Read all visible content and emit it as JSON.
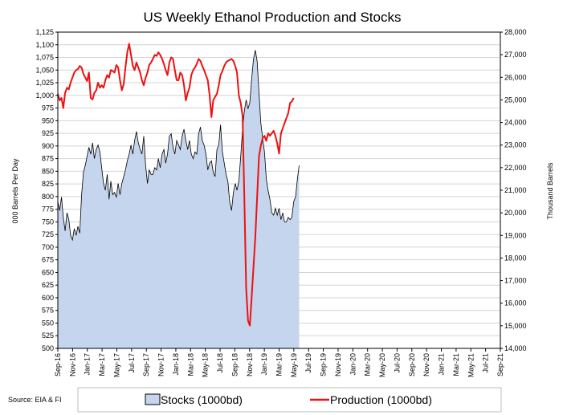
{
  "chart_data": {
    "type": "line",
    "title": "US Weekly Ethanol Production and Stocks",
    "ylabel_left": "000 Barrels Per Day",
    "ylabel_right": "Thousand Barrels",
    "source": "Source: EIA & FI",
    "ylim_left": [
      500,
      1125
    ],
    "ylim_right": [
      14000,
      28000
    ],
    "y_ticks_left": [
      500,
      525,
      550,
      575,
      600,
      625,
      650,
      675,
      700,
      725,
      750,
      775,
      800,
      825,
      850,
      875,
      900,
      925,
      950,
      975,
      1000,
      1025,
      1050,
      1075,
      1100,
      1125
    ],
    "y_ticks_right": [
      14000,
      15000,
      16000,
      17000,
      18000,
      19000,
      20000,
      21000,
      22000,
      23000,
      24000,
      25000,
      26000,
      27000,
      28000
    ],
    "x_tick_labels": [
      "Sep-16",
      "Nov-16",
      "Jan-17",
      "Mar-17",
      "May-17",
      "Jul-17",
      "Sep-17",
      "Nov-17",
      "Jan-18",
      "Mar-18",
      "May-18",
      "Jul-18",
      "Sep-18",
      "Nov-18",
      "Jan-19",
      "Mar-19",
      "May-19",
      "Jul-19",
      "Sep-19",
      "Nov-19",
      "Jan-20",
      "Mar-20",
      "May-20",
      "Jul-20",
      "Sep-20",
      "Nov-20",
      "Jan-21",
      "Mar-21",
      "May-21",
      "Jul-21",
      "Sep-21"
    ],
    "grid": true,
    "legend_position": "bottom",
    "series": [
      {
        "name": "Stocks (1000bd)",
        "type": "area",
        "axis": "right",
        "color": "#c5d5ee",
        "edge_color": "#000000",
        "points": [
          [
            0,
            20500
          ],
          [
            1,
            20100
          ],
          [
            2,
            20700
          ],
          [
            3,
            19800
          ],
          [
            4,
            19200
          ],
          [
            5,
            20000
          ],
          [
            6,
            19700
          ],
          [
            7,
            19000
          ],
          [
            8,
            18800
          ],
          [
            9,
            19300
          ],
          [
            10,
            19000
          ],
          [
            11,
            19400
          ],
          [
            12,
            19100
          ],
          [
            13,
            20800
          ],
          [
            14,
            21800
          ],
          [
            15,
            22100
          ],
          [
            16,
            22500
          ],
          [
            17,
            22900
          ],
          [
            18,
            22600
          ],
          [
            19,
            23100
          ],
          [
            20,
            22400
          ],
          [
            21,
            22800
          ],
          [
            22,
            23000
          ],
          [
            23,
            22700
          ],
          [
            24,
            22000
          ],
          [
            25,
            21300
          ],
          [
            26,
            21000
          ],
          [
            27,
            21700
          ],
          [
            28,
            20600
          ],
          [
            29,
            21400
          ],
          [
            30,
            20800
          ],
          [
            31,
            20900
          ],
          [
            32,
            20700
          ],
          [
            33,
            21300
          ],
          [
            34,
            20800
          ],
          [
            35,
            21300
          ],
          [
            36,
            21600
          ],
          [
            37,
            21900
          ],
          [
            38,
            22300
          ],
          [
            39,
            22600
          ],
          [
            40,
            23000
          ],
          [
            41,
            22600
          ],
          [
            42,
            23200
          ],
          [
            43,
            23600
          ],
          [
            44,
            23100
          ],
          [
            45,
            22800
          ],
          [
            46,
            22600
          ],
          [
            47,
            23400
          ],
          [
            48,
            22100
          ],
          [
            49,
            21300
          ],
          [
            50,
            21900
          ],
          [
            51,
            21700
          ],
          [
            52,
            21700
          ],
          [
            53,
            22000
          ],
          [
            54,
            21900
          ],
          [
            55,
            22400
          ],
          [
            56,
            22000
          ],
          [
            57,
            22600
          ],
          [
            58,
            22800
          ],
          [
            59,
            22200
          ],
          [
            60,
            22600
          ],
          [
            61,
            23400
          ],
          [
            62,
            23500
          ],
          [
            63,
            22900
          ],
          [
            64,
            22600
          ],
          [
            65,
            23200
          ],
          [
            66,
            23000
          ],
          [
            67,
            22800
          ],
          [
            68,
            23400
          ],
          [
            69,
            23700
          ],
          [
            70,
            23200
          ],
          [
            71,
            22800
          ],
          [
            72,
            23200
          ],
          [
            73,
            22600
          ],
          [
            74,
            22400
          ],
          [
            75,
            22700
          ],
          [
            76,
            22600
          ],
          [
            77,
            23500
          ],
          [
            78,
            23800
          ],
          [
            79,
            23200
          ],
          [
            80,
            23000
          ],
          [
            81,
            22600
          ],
          [
            82,
            21900
          ],
          [
            83,
            22200
          ],
          [
            84,
            22300
          ],
          [
            85,
            21800
          ],
          [
            86,
            21600
          ],
          [
            87,
            22800
          ],
          [
            88,
            23000
          ],
          [
            89,
            23900
          ],
          [
            90,
            22700
          ],
          [
            91,
            22200
          ],
          [
            92,
            21700
          ],
          [
            93,
            21400
          ],
          [
            94,
            20500
          ],
          [
            95,
            20100
          ],
          [
            96,
            20900
          ],
          [
            97,
            21300
          ],
          [
            98,
            21000
          ],
          [
            99,
            21400
          ],
          [
            100,
            22500
          ],
          [
            101,
            23700
          ],
          [
            102,
            24500
          ],
          [
            103,
            25000
          ],
          [
            104,
            24600
          ],
          [
            105,
            24900
          ],
          [
            106,
            25900
          ],
          [
            107,
            26800
          ],
          [
            108,
            27200
          ],
          [
            109,
            26700
          ],
          [
            110,
            25300
          ],
          [
            111,
            24000
          ],
          [
            112,
            23300
          ],
          [
            113,
            22700
          ],
          [
            114,
            21500
          ],
          [
            115,
            21000
          ],
          [
            116,
            20600
          ],
          [
            117,
            20000
          ],
          [
            118,
            19900
          ],
          [
            119,
            20200
          ],
          [
            120,
            19900
          ],
          [
            121,
            20200
          ],
          [
            122,
            19700
          ],
          [
            123,
            20000
          ],
          [
            124,
            19600
          ],
          [
            125,
            19600
          ],
          [
            126,
            19800
          ],
          [
            127,
            19700
          ],
          [
            128,
            19800
          ],
          [
            129,
            20500
          ],
          [
            130,
            20700
          ],
          [
            131,
            21500
          ],
          [
            132,
            22100
          ]
        ]
      },
      {
        "name": "Production (1000bd)",
        "type": "line",
        "axis": "left",
        "color": "#ee1111",
        "points": [
          [
            0,
            1003
          ],
          [
            1,
            990
          ],
          [
            2,
            995
          ],
          [
            3,
            975
          ],
          [
            4,
            1005
          ],
          [
            5,
            1015
          ],
          [
            6,
            1012
          ],
          [
            7,
            1025
          ],
          [
            8,
            1035
          ],
          [
            9,
            1045
          ],
          [
            10,
            1050
          ],
          [
            11,
            1052
          ],
          [
            12,
            1058
          ],
          [
            13,
            1055
          ],
          [
            14,
            1042
          ],
          [
            15,
            1035
          ],
          [
            16,
            1028
          ],
          [
            17,
            1045
          ],
          [
            18,
            995
          ],
          [
            19,
            992
          ],
          [
            20,
            1005
          ],
          [
            21,
            1010
          ],
          [
            22,
            1025
          ],
          [
            23,
            1015
          ],
          [
            24,
            1020
          ],
          [
            25,
            1015
          ],
          [
            26,
            1030
          ],
          [
            27,
            1040
          ],
          [
            28,
            1035
          ],
          [
            29,
            1050
          ],
          [
            30,
            1048
          ],
          [
            31,
            1045
          ],
          [
            32,
            1060
          ],
          [
            33,
            1055
          ],
          [
            34,
            1030
          ],
          [
            35,
            1010
          ],
          [
            36,
            1022
          ],
          [
            37,
            1055
          ],
          [
            38,
            1085
          ],
          [
            39,
            1102
          ],
          [
            40,
            1080
          ],
          [
            41,
            1058
          ],
          [
            42,
            1050
          ],
          [
            43,
            1065
          ],
          [
            44,
            1055
          ],
          [
            45,
            1045
          ],
          [
            46,
            1030
          ],
          [
            47,
            1020
          ],
          [
            48,
            1035
          ],
          [
            49,
            1045
          ],
          [
            50,
            1060
          ],
          [
            51,
            1065
          ],
          [
            52,
            1072
          ],
          [
            53,
            1080
          ],
          [
            54,
            1078
          ],
          [
            55,
            1085
          ],
          [
            56,
            1080
          ],
          [
            57,
            1072
          ],
          [
            58,
            1062
          ],
          [
            59,
            1050
          ],
          [
            60,
            1040
          ],
          [
            61,
            1065
          ],
          [
            62,
            1075
          ],
          [
            63,
            1072
          ],
          [
            64,
            1050
          ],
          [
            65,
            1030
          ],
          [
            66,
            1030
          ],
          [
            67,
            1045
          ],
          [
            68,
            1040
          ],
          [
            69,
            1020
          ],
          [
            70,
            990
          ],
          [
            71,
            1005
          ],
          [
            72,
            1015
          ],
          [
            73,
            1040
          ],
          [
            74,
            1050
          ],
          [
            75,
            1055
          ],
          [
            76,
            1062
          ],
          [
            77,
            1072
          ],
          [
            78,
            1068
          ],
          [
            79,
            1058
          ],
          [
            80,
            1050
          ],
          [
            81,
            1040
          ],
          [
            82,
            1030
          ],
          [
            83,
            1000
          ],
          [
            84,
            957
          ],
          [
            85,
            990
          ],
          [
            86,
            997
          ],
          [
            87,
            1003
          ],
          [
            88,
            1020
          ],
          [
            89,
            1040
          ],
          [
            90,
            1048
          ],
          [
            91,
            1058
          ],
          [
            92,
            1065
          ],
          [
            93,
            1068
          ],
          [
            94,
            1070
          ],
          [
            95,
            1072
          ],
          [
            96,
            1068
          ],
          [
            97,
            1058
          ],
          [
            98,
            1045
          ],
          [
            99,
            1000
          ],
          [
            100,
            985
          ],
          [
            101,
            960
          ],
          [
            102,
            800
          ],
          [
            103,
            620
          ],
          [
            104,
            555
          ],
          [
            105,
            545
          ],
          [
            106,
            600
          ],
          [
            107,
            660
          ],
          [
            108,
            720
          ],
          [
            109,
            800
          ],
          [
            110,
            880
          ],
          [
            111,
            900
          ],
          [
            112,
            915
          ],
          [
            113,
            920
          ],
          [
            114,
            910
          ],
          [
            115,
            925
          ],
          [
            116,
            920
          ],
          [
            117,
            925
          ],
          [
            118,
            930
          ],
          [
            119,
            920
          ],
          [
            120,
            905
          ],
          [
            121,
            885
          ],
          [
            122,
            925
          ],
          [
            123,
            935
          ],
          [
            124,
            945
          ],
          [
            125,
            955
          ],
          [
            126,
            965
          ],
          [
            127,
            985
          ],
          [
            128,
            988
          ],
          [
            129,
            995
          ]
        ]
      }
    ]
  }
}
